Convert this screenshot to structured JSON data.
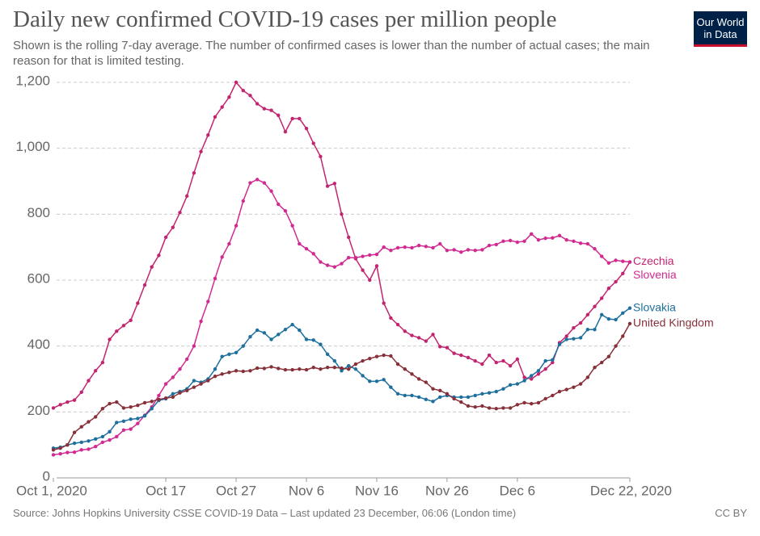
{
  "chart_data": {
    "type": "line",
    "title": "Daily new confirmed COVID-19 cases per million people",
    "subtitle": "Shown is the rolling 7-day average. The number of confirmed cases is lower than the number of actual cases; the main reason for that is limited testing.",
    "source": "Source: Johns Hopkins University CSSE COVID-19 Data – Last updated 23 December, 06:06 (London time)",
    "license": "CC BY",
    "logo": [
      "Our World",
      "in Data"
    ],
    "grid": true,
    "xlim": [
      0,
      82
    ],
    "ylim": [
      0,
      1200
    ],
    "xticks": [
      {
        "value": 0,
        "label": "Oct 1, 2020"
      },
      {
        "value": 16,
        "label": "Oct 17"
      },
      {
        "value": 26,
        "label": "Oct 27"
      },
      {
        "value": 36,
        "label": "Nov 6"
      },
      {
        "value": 46,
        "label": "Nov 16"
      },
      {
        "value": 56,
        "label": "Nov 26"
      },
      {
        "value": 66,
        "label": "Dec 6"
      },
      {
        "value": 82,
        "label": "Dec 22, 2020"
      }
    ],
    "yticks": [
      0,
      200,
      400,
      600,
      800,
      {
        "value": 1000,
        "label": "1,000"
      },
      {
        "value": 1200,
        "label": "1,200"
      }
    ],
    "x": [
      0,
      1,
      2,
      3,
      4,
      5,
      6,
      7,
      8,
      9,
      10,
      11,
      12,
      13,
      14,
      15,
      16,
      17,
      18,
      19,
      20,
      21,
      22,
      23,
      24,
      25,
      26,
      27,
      28,
      29,
      30,
      31,
      32,
      33,
      34,
      35,
      36,
      37,
      38,
      39,
      40,
      41,
      42,
      43,
      44,
      45,
      46,
      47,
      48,
      49,
      50,
      51,
      52,
      53,
      54,
      55,
      56,
      57,
      58,
      59,
      60,
      61,
      62,
      63,
      64,
      65,
      66,
      67,
      68,
      69,
      70,
      71,
      72,
      73,
      74,
      75,
      76,
      77,
      78,
      79,
      80,
      81,
      82
    ],
    "series": [
      {
        "name": "Czechia",
        "color": "#c2246f",
        "values": [
          212,
          222,
          230,
          236,
          260,
          295,
          325,
          350,
          420,
          445,
          462,
          478,
          530,
          585,
          640,
          675,
          730,
          760,
          805,
          855,
          925,
          990,
          1040,
          1095,
          1125,
          1155,
          1200,
          1175,
          1160,
          1135,
          1120,
          1115,
          1100,
          1050,
          1090,
          1090,
          1060,
          1015,
          975,
          885,
          893,
          800,
          730,
          665,
          630,
          600,
          643,
          530,
          485,
          465,
          445,
          432,
          425,
          415,
          435,
          398,
          395,
          378,
          372,
          365,
          355,
          345,
          372,
          350,
          355,
          340,
          360,
          305,
          300,
          315,
          330,
          350,
          410,
          430,
          455,
          470,
          495,
          520,
          545,
          575,
          595,
          620,
          655
        ]
      },
      {
        "name": "Slovenia",
        "color": "#d12a91",
        "values": [
          70,
          73,
          77,
          78,
          85,
          87,
          95,
          108,
          115,
          125,
          145,
          148,
          165,
          190,
          215,
          250,
          285,
          305,
          330,
          360,
          400,
          475,
          535,
          605,
          670,
          710,
          765,
          840,
          895,
          905,
          895,
          870,
          830,
          810,
          765,
          710,
          695,
          680,
          655,
          645,
          640,
          650,
          668,
          668,
          672,
          676,
          678,
          700,
          690,
          698,
          700,
          698,
          705,
          702,
          698,
          710,
          690,
          692,
          685,
          692,
          690,
          692,
          705,
          708,
          718,
          720,
          715,
          718,
          740,
          722,
          727,
          728,
          735,
          722,
          718,
          712,
          710,
          695,
          672,
          652,
          660,
          657,
          655
        ]
      },
      {
        "name": "Slovakia",
        "color": "#1d6f9e",
        "values": [
          90,
          93,
          100,
          105,
          108,
          112,
          118,
          125,
          140,
          168,
          172,
          178,
          180,
          188,
          210,
          235,
          240,
          255,
          262,
          270,
          295,
          290,
          300,
          330,
          368,
          375,
          380,
          400,
          428,
          448,
          440,
          420,
          435,
          450,
          465,
          448,
          420,
          418,
          405,
          375,
          355,
          325,
          340,
          330,
          310,
          293,
          293,
          298,
          275,
          255,
          250,
          250,
          245,
          238,
          232,
          245,
          250,
          245,
          245,
          245,
          250,
          255,
          258,
          262,
          270,
          282,
          285,
          295,
          310,
          325,
          355,
          358,
          405,
          420,
          422,
          425,
          450,
          450,
          495,
          482,
          480,
          500,
          515
        ]
      },
      {
        "name": "United Kingdom",
        "color": "#883039",
        "values": [
          85,
          90,
          100,
          138,
          155,
          170,
          185,
          210,
          225,
          230,
          212,
          215,
          220,
          228,
          232,
          238,
          242,
          245,
          258,
          265,
          275,
          285,
          295,
          308,
          315,
          320,
          325,
          323,
          325,
          333,
          332,
          337,
          332,
          328,
          328,
          330,
          328,
          335,
          330,
          335,
          335,
          333,
          330,
          345,
          355,
          362,
          368,
          372,
          370,
          345,
          330,
          315,
          300,
          290,
          270,
          265,
          255,
          240,
          230,
          218,
          215,
          218,
          212,
          210,
          212,
          212,
          222,
          228,
          225,
          228,
          240,
          250,
          262,
          268,
          275,
          285,
          305,
          335,
          350,
          368,
          400,
          430,
          468
        ]
      }
    ]
  }
}
